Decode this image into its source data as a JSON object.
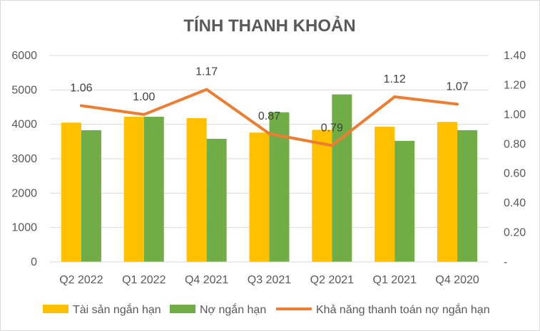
{
  "chart_data": {
    "type": "bar",
    "title": "TÍNH THANH KHOẢN",
    "categories": [
      "Q2 2022",
      "Q1 2022",
      "Q4 2021",
      "Q3 2021",
      "Q2 2021",
      "Q1 2021",
      "Q4 2020"
    ],
    "series": [
      {
        "name": "Tài sản ngắn hạn",
        "type": "bar",
        "axis": "left",
        "color": "#FFC000",
        "values": [
          4050,
          4220,
          4180,
          3760,
          3840,
          3930,
          4070
        ]
      },
      {
        "name": "Nợ ngắn hạn",
        "type": "bar",
        "axis": "left",
        "color": "#70AD47",
        "values": [
          3830,
          4220,
          3580,
          4350,
          4870,
          3520,
          3830
        ]
      },
      {
        "name": "Khả năng thanh toán nợ ngắn hạn",
        "type": "line",
        "axis": "right",
        "color": "#ED7D31",
        "values": [
          1.06,
          1.0,
          1.17,
          0.87,
          0.79,
          1.12,
          1.07
        ],
        "labels": [
          "1.06",
          "1.00",
          "1.17",
          "0.87",
          "0.79",
          "1.12",
          "1.07"
        ]
      }
    ],
    "y_left": {
      "min": 0,
      "max": 6000,
      "ticks": [
        "0",
        "1000",
        "2000",
        "3000",
        "4000",
        "5000",
        "6000"
      ]
    },
    "y_right": {
      "min": 0,
      "max": 1.4,
      "ticks": [
        "-",
        "0.20",
        "0.40",
        "0.60",
        "0.80",
        "1.00",
        "1.20",
        "1.40"
      ]
    },
    "grid": true,
    "legend_position": "bottom"
  }
}
